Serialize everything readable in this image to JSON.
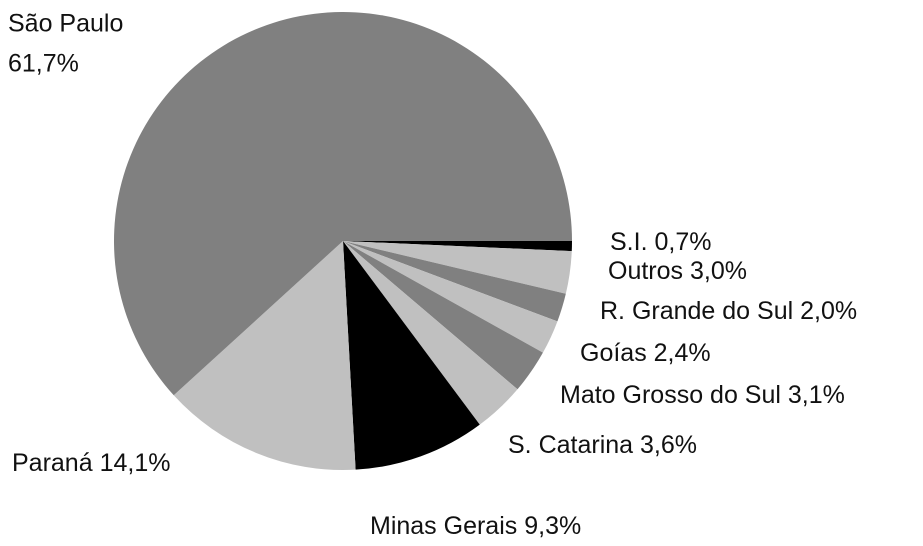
{
  "chart_data": {
    "type": "pie",
    "categories": [
      "S.I.",
      "Outros",
      "R. Grande do Sul",
      "Goías",
      "Mato Grosso do Sul",
      "S. Catarina",
      "Minas Gerais",
      "Paraná",
      "São Paulo"
    ],
    "values": [
      0.7,
      3.0,
      2.0,
      2.4,
      3.1,
      3.6,
      9.3,
      14.1,
      61.7
    ],
    "value_labels": [
      "0,7%",
      "3,0%",
      "2,0%",
      "2,4%",
      "3,1%",
      "3,6%",
      "9,3%",
      "14,1%",
      "61,7%"
    ],
    "colors": [
      "#000000",
      "#c0c0c0",
      "#808080",
      "#c0c0c0",
      "#808080",
      "#c0c0c0",
      "#000000",
      "#c0c0c0",
      "#808080"
    ]
  }
}
